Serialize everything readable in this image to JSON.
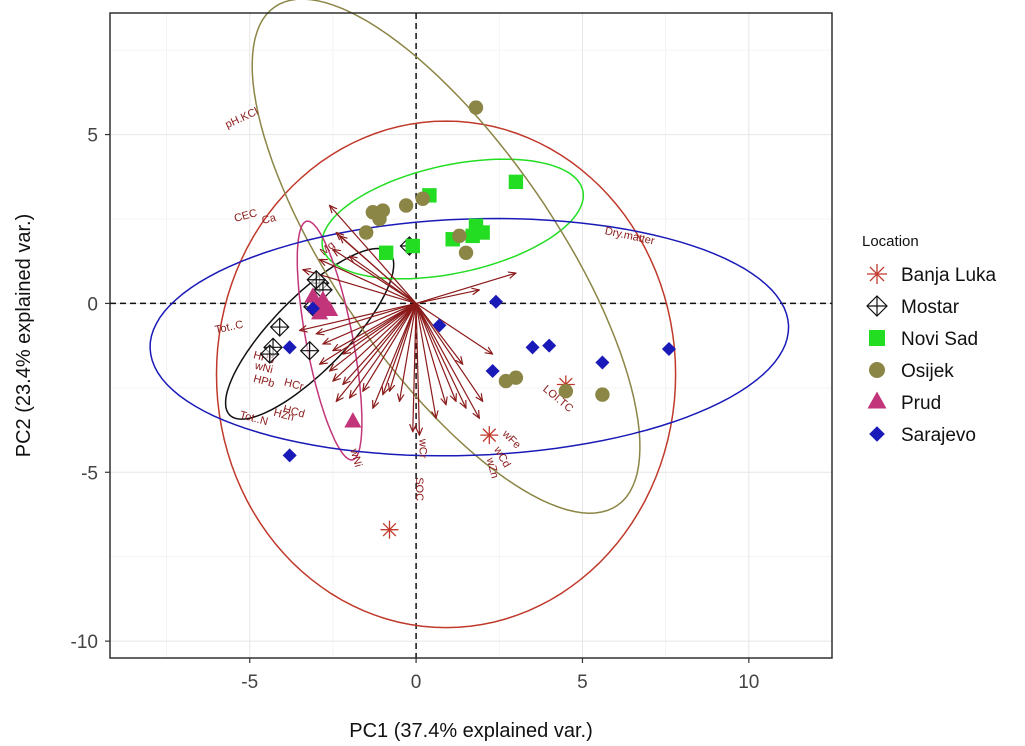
{
  "chart_data": {
    "type": "scatter",
    "title": "",
    "xlabel": "PC1 (37.4% explained var.)",
    "ylabel": "PC2 (23.4% explained var.)",
    "xlim": [
      -9.2,
      12.5
    ],
    "ylim": [
      -10.5,
      8.6
    ],
    "xticks": [
      -5,
      0,
      5,
      10
    ],
    "yticks": [
      -10,
      -5,
      0,
      5
    ],
    "grid": true,
    "legend": {
      "title": "Location",
      "position": "right"
    },
    "series": [
      {
        "name": "Banja Luka",
        "color": "#c0392b",
        "marker": "asterisk",
        "points": [
          [
            -0.8,
            -6.7
          ],
          [
            2.2,
            -3.9
          ],
          [
            4.5,
            -2.4
          ]
        ]
      },
      {
        "name": "Mostar",
        "color": "#111111",
        "marker": "diamond-cross",
        "points": [
          [
            -4.1,
            -0.7
          ],
          [
            -4.3,
            -1.3
          ],
          [
            -4.4,
            -1.5
          ],
          [
            -3.2,
            -1.4
          ],
          [
            -2.9,
            0.6
          ],
          [
            -2.8,
            0.4
          ],
          [
            -3.0,
            0.7
          ],
          [
            -0.2,
            1.7
          ],
          [
            -3.1,
            -0.1
          ]
        ]
      },
      {
        "name": "Novi Sad",
        "color": "#22dd22",
        "marker": "square",
        "points": [
          [
            0.4,
            3.2
          ],
          [
            3.0,
            3.6
          ],
          [
            1.8,
            2.3
          ],
          [
            2.0,
            2.1
          ],
          [
            1.7,
            2.0
          ],
          [
            1.1,
            1.9
          ],
          [
            -0.1,
            1.7
          ],
          [
            -0.9,
            1.5
          ]
        ]
      },
      {
        "name": "Osijek",
        "color": "#8b8546",
        "marker": "circle",
        "points": [
          [
            1.8,
            5.8
          ],
          [
            0.2,
            3.1
          ],
          [
            -0.3,
            2.9
          ],
          [
            -1.0,
            2.75
          ],
          [
            -1.3,
            2.7
          ],
          [
            -1.1,
            2.5
          ],
          [
            -1.5,
            2.1
          ],
          [
            1.3,
            2.0
          ],
          [
            1.5,
            1.5
          ],
          [
            2.7,
            -2.3
          ],
          [
            3.0,
            -2.2
          ],
          [
            4.5,
            -2.6
          ],
          [
            5.6,
            -2.7
          ]
        ]
      },
      {
        "name": "Prud",
        "color": "#c2357a",
        "marker": "triangle",
        "points": [
          [
            -2.8,
            0.1
          ],
          [
            -2.6,
            -0.2
          ],
          [
            -3.0,
            -0.1
          ],
          [
            -3.1,
            0.2
          ],
          [
            -2.9,
            -0.3
          ],
          [
            -2.7,
            -0.1
          ],
          [
            -1.9,
            -3.5
          ]
        ]
      },
      {
        "name": "Sarajevo",
        "color": "#1a1ab8",
        "marker": "diamond",
        "points": [
          [
            2.4,
            0.05
          ],
          [
            0.7,
            -0.65
          ],
          [
            3.5,
            -1.3
          ],
          [
            4.0,
            -1.25
          ],
          [
            5.6,
            -1.75
          ],
          [
            7.6,
            -1.35
          ],
          [
            2.3,
            -2.0
          ],
          [
            -3.8,
            -1.3
          ],
          [
            -3.8,
            -4.5
          ],
          [
            -3.1,
            -0.15
          ]
        ]
      }
    ],
    "ellipses": [
      {
        "series": "Banja Luka",
        "color": "#c0392b",
        "cx": 0.9,
        "cy": -2.1,
        "rx": 6.9,
        "ry": 7.5,
        "angle": 0
      },
      {
        "series": "Mostar",
        "color": "#111111",
        "cx": -3.2,
        "cy": -0.9,
        "rx": 3.4,
        "ry": 1.1,
        "angle": 45
      },
      {
        "series": "Novi Sad",
        "color": "#22dd22",
        "cx": 1.1,
        "cy": 2.5,
        "rx": 4.0,
        "ry": 1.6,
        "angle": 12
      },
      {
        "series": "Osijek",
        "color": "#8b8546",
        "cx": 0.9,
        "cy": 1.4,
        "rx": 9.0,
        "ry": 3.3,
        "angle": -55
      },
      {
        "series": "Prud",
        "color": "#c2357a",
        "cx": -2.6,
        "cy": -1.1,
        "rx": 3.6,
        "ry": 0.7,
        "angle": -79
      },
      {
        "series": "Sarajevo",
        "color": "#1a1ab8",
        "cx": 1.6,
        "cy": -1.0,
        "rx": 9.6,
        "ry": 3.5,
        "angle": 2
      }
    ],
    "loadings": {
      "color": "#8b1a1a",
      "vectors": [
        {
          "label": "pH.KCl",
          "x": -2.6,
          "y": 2.9,
          "lx": -5.2,
          "ly": 5.4,
          "rot": 25
        },
        {
          "label": "CEC",
          "x": -2.4,
          "y": 2.1,
          "lx": -5.1,
          "ly": 2.5,
          "rot": 15
        },
        {
          "label": "Ca",
          "x": -2.3,
          "y": 2.0,
          "lx": -4.4,
          "ly": 2.4,
          "rot": 15
        },
        {
          "label": "Mg",
          "x": -2.0,
          "y": 1.4,
          "lx": -2.6,
          "ly": 1.55,
          "rot": 40
        },
        {
          "label": "",
          "x": -2.5,
          "y": 1.6,
          "lx": 0,
          "ly": 0,
          "rot": 0
        },
        {
          "label": "",
          "x": -2.9,
          "y": 1.3,
          "lx": 0,
          "ly": 0,
          "rot": 0
        },
        {
          "label": "",
          "x": -3.4,
          "y": 1.0,
          "lx": 0,
          "ly": 0,
          "rot": 0
        },
        {
          "label": "Dry.matter",
          "x": 3.0,
          "y": 0.9,
          "lx": 6.4,
          "ly": 1.9,
          "rot": -12
        },
        {
          "label": "",
          "x": 1.9,
          "y": 0.4,
          "lx": 0,
          "ly": 0,
          "rot": 0
        },
        {
          "label": "Tot..C",
          "x": -3.5,
          "y": -0.8,
          "lx": -5.6,
          "ly": -0.8,
          "rot": 12
        },
        {
          "label": "",
          "x": -3.0,
          "y": -0.9,
          "lx": 0,
          "ly": 0,
          "rot": 0
        },
        {
          "label": "",
          "x": -2.8,
          "y": -1.2,
          "lx": 0,
          "ly": 0,
          "rot": 0
        },
        {
          "label": "",
          "x": -2.5,
          "y": -1.4,
          "lx": 0,
          "ly": 0,
          "rot": 0
        },
        {
          "label": "",
          "x": -2.2,
          "y": -1.5,
          "lx": 0,
          "ly": 0,
          "rot": 0
        },
        {
          "label": "HPb",
          "x": -2.6,
          "y": -2.0,
          "lx": -4.6,
          "ly": -1.7,
          "rot": -15
        },
        {
          "label": "wNi",
          "x": -2.9,
          "y": -1.8,
          "lx": -4.6,
          "ly": -2.0,
          "rot": -15
        },
        {
          "label": "HPb",
          "x": -2.5,
          "y": -2.3,
          "lx": -4.6,
          "ly": -2.4,
          "rot": -15
        },
        {
          "label": "HCr",
          "x": -2.2,
          "y": -2.4,
          "lx": -3.7,
          "ly": -2.5,
          "rot": -15
        },
        {
          "label": "Tot..N",
          "x": -2.4,
          "y": -2.9,
          "lx": -4.9,
          "ly": -3.5,
          "rot": -15
        },
        {
          "label": "HZn",
          "x": -2.0,
          "y": -2.8,
          "lx": -4.0,
          "ly": -3.4,
          "rot": -15
        },
        {
          "label": "HCd",
          "x": -1.6,
          "y": -2.6,
          "lx": -3.7,
          "ly": -3.3,
          "rot": -15
        },
        {
          "label": "wNi",
          "x": -1.3,
          "y": -3.1,
          "lx": -1.9,
          "ly": -4.6,
          "rot": -75
        },
        {
          "label": "",
          "x": -1.0,
          "y": -2.7,
          "lx": 0,
          "ly": 0,
          "rot": 0
        },
        {
          "label": "",
          "x": -0.8,
          "y": -2.6,
          "lx": 0,
          "ly": 0,
          "rot": 0
        },
        {
          "label": "",
          "x": -0.5,
          "y": -2.9,
          "lx": 0,
          "ly": 0,
          "rot": 0
        },
        {
          "label": "SOC",
          "x": -0.1,
          "y": -3.8,
          "lx": 0.0,
          "ly": -5.5,
          "rot": -90
        },
        {
          "label": "wCr",
          "x": 0.1,
          "y": -3.9,
          "lx": 0.1,
          "ly": -4.3,
          "rot": -90
        },
        {
          "label": "",
          "x": 0.6,
          "y": -3.4,
          "lx": 0,
          "ly": 0,
          "rot": 0
        },
        {
          "label": "",
          "x": 0.9,
          "y": -3.0,
          "lx": 0,
          "ly": 0,
          "rot": 0
        },
        {
          "label": "",
          "x": 1.2,
          "y": -2.9,
          "lx": 0,
          "ly": 0,
          "rot": 0
        },
        {
          "label": "wZn",
          "x": 1.5,
          "y": -3.1,
          "lx": 2.2,
          "ly": -4.9,
          "rot": -75
        },
        {
          "label": "wCd",
          "x": 1.9,
          "y": -3.4,
          "lx": 2.5,
          "ly": -4.6,
          "rot": -60
        },
        {
          "label": "wFe",
          "x": 2.0,
          "y": -2.9,
          "lx": 2.8,
          "ly": -4.1,
          "rot": -45
        },
        {
          "label": "",
          "x": 1.4,
          "y": -1.8,
          "lx": 0,
          "ly": 0,
          "rot": 0
        },
        {
          "label": "LOI.TC",
          "x": 2.3,
          "y": -1.5,
          "lx": 4.2,
          "ly": -2.9,
          "rot": -40
        }
      ]
    }
  }
}
